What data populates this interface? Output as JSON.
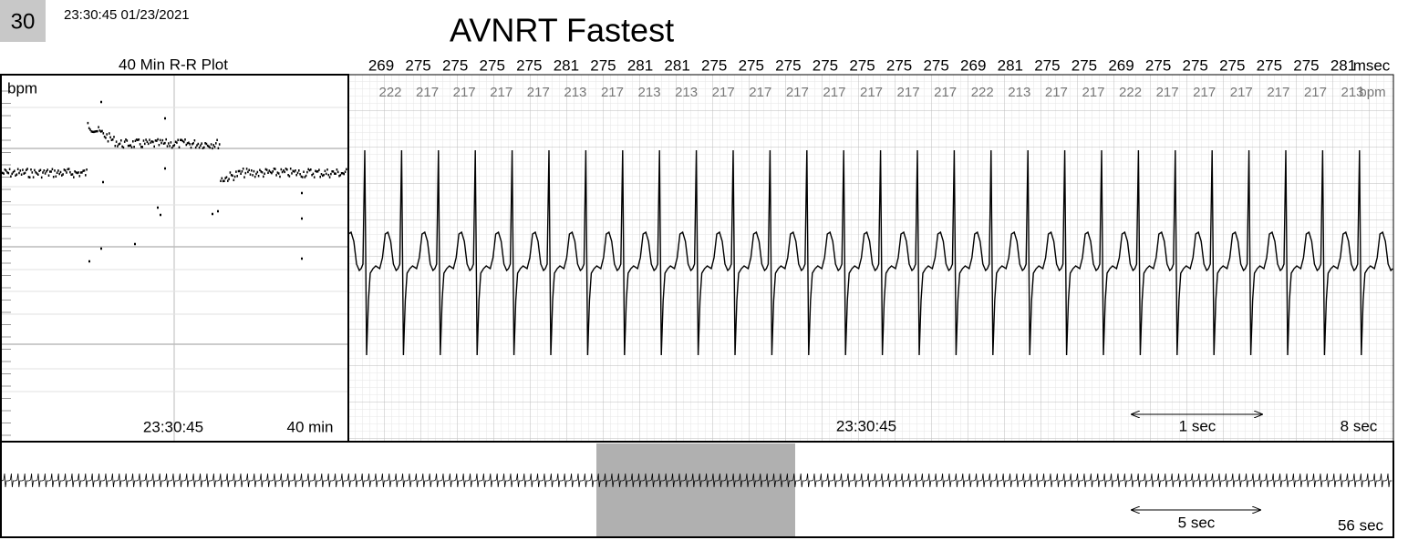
{
  "header": {
    "strip_number": "30",
    "timestamp": "23:30:45 01/23/2021",
    "title": "AVNRT Fastest"
  },
  "rr_plot": {
    "title": "40 Min R-R Plot",
    "y_unit": "bpm",
    "time": "23:30:45",
    "span": "40 min"
  },
  "strip": {
    "rr_intervals": [
      269,
      275,
      275,
      275,
      275,
      281,
      275,
      281,
      281,
      275,
      275,
      275,
      275,
      275,
      275,
      275,
      269,
      281,
      275,
      275,
      269,
      275,
      275,
      275,
      275,
      275,
      281
    ],
    "rr_unit": "msec",
    "heart_rates": [
      222,
      217,
      217,
      217,
      217,
      213,
      217,
      213,
      213,
      217,
      217,
      217,
      217,
      217,
      217,
      217,
      222,
      213,
      217,
      217,
      222,
      217,
      217,
      217,
      217,
      217,
      213
    ],
    "hr_unit": "bpm",
    "time": "23:30:45",
    "scale_label": "1 sec",
    "span": "8 sec"
  },
  "overview": {
    "scale_label": "5 sec",
    "span": "56 sec"
  }
}
